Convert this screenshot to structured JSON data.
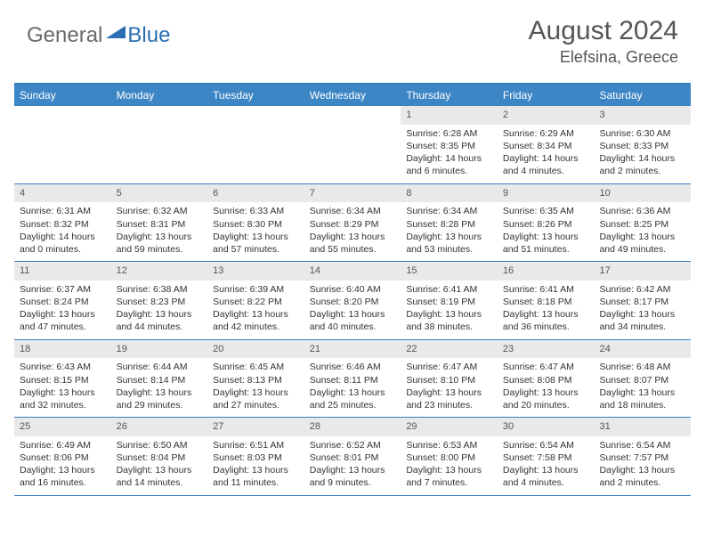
{
  "logo": {
    "part1": "General",
    "part2": "Blue"
  },
  "title": "August 2024",
  "location": "Elefsina, Greece",
  "colors": {
    "header_bg": "#3d86c6",
    "header_text": "#ffffff",
    "border": "#3a7ebf",
    "daynum_bg": "#e9e9e9",
    "text": "#333333",
    "muted": "#555555",
    "logo_gray": "#6a6a6a",
    "logo_blue": "#2b6fb3"
  },
  "weekdays": [
    "Sunday",
    "Monday",
    "Tuesday",
    "Wednesday",
    "Thursday",
    "Friday",
    "Saturday"
  ],
  "weeks": [
    [
      {
        "n": "",
        "sr": "",
        "ss": "",
        "dl": ""
      },
      {
        "n": "",
        "sr": "",
        "ss": "",
        "dl": ""
      },
      {
        "n": "",
        "sr": "",
        "ss": "",
        "dl": ""
      },
      {
        "n": "",
        "sr": "",
        "ss": "",
        "dl": ""
      },
      {
        "n": "1",
        "sr": "Sunrise: 6:28 AM",
        "ss": "Sunset: 8:35 PM",
        "dl": "Daylight: 14 hours and 6 minutes."
      },
      {
        "n": "2",
        "sr": "Sunrise: 6:29 AM",
        "ss": "Sunset: 8:34 PM",
        "dl": "Daylight: 14 hours and 4 minutes."
      },
      {
        "n": "3",
        "sr": "Sunrise: 6:30 AM",
        "ss": "Sunset: 8:33 PM",
        "dl": "Daylight: 14 hours and 2 minutes."
      }
    ],
    [
      {
        "n": "4",
        "sr": "Sunrise: 6:31 AM",
        "ss": "Sunset: 8:32 PM",
        "dl": "Daylight: 14 hours and 0 minutes."
      },
      {
        "n": "5",
        "sr": "Sunrise: 6:32 AM",
        "ss": "Sunset: 8:31 PM",
        "dl": "Daylight: 13 hours and 59 minutes."
      },
      {
        "n": "6",
        "sr": "Sunrise: 6:33 AM",
        "ss": "Sunset: 8:30 PM",
        "dl": "Daylight: 13 hours and 57 minutes."
      },
      {
        "n": "7",
        "sr": "Sunrise: 6:34 AM",
        "ss": "Sunset: 8:29 PM",
        "dl": "Daylight: 13 hours and 55 minutes."
      },
      {
        "n": "8",
        "sr": "Sunrise: 6:34 AM",
        "ss": "Sunset: 8:28 PM",
        "dl": "Daylight: 13 hours and 53 minutes."
      },
      {
        "n": "9",
        "sr": "Sunrise: 6:35 AM",
        "ss": "Sunset: 8:26 PM",
        "dl": "Daylight: 13 hours and 51 minutes."
      },
      {
        "n": "10",
        "sr": "Sunrise: 6:36 AM",
        "ss": "Sunset: 8:25 PM",
        "dl": "Daylight: 13 hours and 49 minutes."
      }
    ],
    [
      {
        "n": "11",
        "sr": "Sunrise: 6:37 AM",
        "ss": "Sunset: 8:24 PM",
        "dl": "Daylight: 13 hours and 47 minutes."
      },
      {
        "n": "12",
        "sr": "Sunrise: 6:38 AM",
        "ss": "Sunset: 8:23 PM",
        "dl": "Daylight: 13 hours and 44 minutes."
      },
      {
        "n": "13",
        "sr": "Sunrise: 6:39 AM",
        "ss": "Sunset: 8:22 PM",
        "dl": "Daylight: 13 hours and 42 minutes."
      },
      {
        "n": "14",
        "sr": "Sunrise: 6:40 AM",
        "ss": "Sunset: 8:20 PM",
        "dl": "Daylight: 13 hours and 40 minutes."
      },
      {
        "n": "15",
        "sr": "Sunrise: 6:41 AM",
        "ss": "Sunset: 8:19 PM",
        "dl": "Daylight: 13 hours and 38 minutes."
      },
      {
        "n": "16",
        "sr": "Sunrise: 6:41 AM",
        "ss": "Sunset: 8:18 PM",
        "dl": "Daylight: 13 hours and 36 minutes."
      },
      {
        "n": "17",
        "sr": "Sunrise: 6:42 AM",
        "ss": "Sunset: 8:17 PM",
        "dl": "Daylight: 13 hours and 34 minutes."
      }
    ],
    [
      {
        "n": "18",
        "sr": "Sunrise: 6:43 AM",
        "ss": "Sunset: 8:15 PM",
        "dl": "Daylight: 13 hours and 32 minutes."
      },
      {
        "n": "19",
        "sr": "Sunrise: 6:44 AM",
        "ss": "Sunset: 8:14 PM",
        "dl": "Daylight: 13 hours and 29 minutes."
      },
      {
        "n": "20",
        "sr": "Sunrise: 6:45 AM",
        "ss": "Sunset: 8:13 PM",
        "dl": "Daylight: 13 hours and 27 minutes."
      },
      {
        "n": "21",
        "sr": "Sunrise: 6:46 AM",
        "ss": "Sunset: 8:11 PM",
        "dl": "Daylight: 13 hours and 25 minutes."
      },
      {
        "n": "22",
        "sr": "Sunrise: 6:47 AM",
        "ss": "Sunset: 8:10 PM",
        "dl": "Daylight: 13 hours and 23 minutes."
      },
      {
        "n": "23",
        "sr": "Sunrise: 6:47 AM",
        "ss": "Sunset: 8:08 PM",
        "dl": "Daylight: 13 hours and 20 minutes."
      },
      {
        "n": "24",
        "sr": "Sunrise: 6:48 AM",
        "ss": "Sunset: 8:07 PM",
        "dl": "Daylight: 13 hours and 18 minutes."
      }
    ],
    [
      {
        "n": "25",
        "sr": "Sunrise: 6:49 AM",
        "ss": "Sunset: 8:06 PM",
        "dl": "Daylight: 13 hours and 16 minutes."
      },
      {
        "n": "26",
        "sr": "Sunrise: 6:50 AM",
        "ss": "Sunset: 8:04 PM",
        "dl": "Daylight: 13 hours and 14 minutes."
      },
      {
        "n": "27",
        "sr": "Sunrise: 6:51 AM",
        "ss": "Sunset: 8:03 PM",
        "dl": "Daylight: 13 hours and 11 minutes."
      },
      {
        "n": "28",
        "sr": "Sunrise: 6:52 AM",
        "ss": "Sunset: 8:01 PM",
        "dl": "Daylight: 13 hours and 9 minutes."
      },
      {
        "n": "29",
        "sr": "Sunrise: 6:53 AM",
        "ss": "Sunset: 8:00 PM",
        "dl": "Daylight: 13 hours and 7 minutes."
      },
      {
        "n": "30",
        "sr": "Sunrise: 6:54 AM",
        "ss": "Sunset: 7:58 PM",
        "dl": "Daylight: 13 hours and 4 minutes."
      },
      {
        "n": "31",
        "sr": "Sunrise: 6:54 AM",
        "ss": "Sunset: 7:57 PM",
        "dl": "Daylight: 13 hours and 2 minutes."
      }
    ]
  ]
}
